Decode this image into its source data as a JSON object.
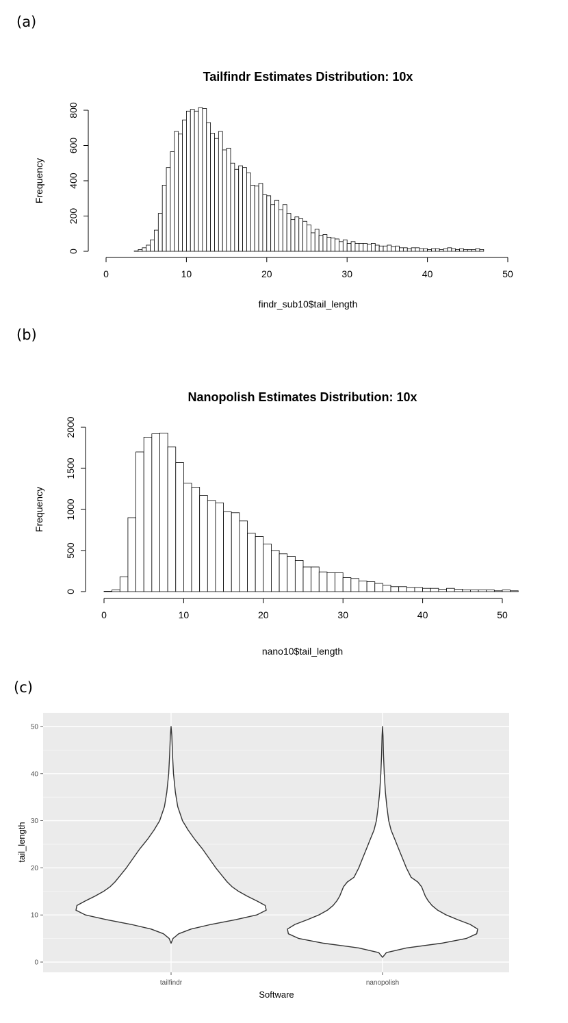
{
  "panel_labels": [
    "(a)",
    "(b)",
    "(c)"
  ],
  "chart_data": [
    {
      "type": "bar",
      "subtype": "histogram",
      "title": "Tailfindr Estimates Distribution: 10x",
      "xlabel": "findr_sub10$tail_length",
      "ylabel": "Frequency",
      "bin_width": 0.5,
      "bin_start": 3.5,
      "xlim": [
        0,
        52
      ],
      "ylim": [
        0,
        810
      ],
      "x_ticks": [
        0,
        10,
        20,
        30,
        40,
        50
      ],
      "y_ticks": [
        0,
        200,
        400,
        600,
        800
      ],
      "values": [
        2,
        10,
        20,
        35,
        65,
        120,
        215,
        375,
        475,
        565,
        680,
        665,
        745,
        795,
        805,
        795,
        815,
        810,
        730,
        670,
        640,
        680,
        575,
        585,
        500,
        465,
        485,
        475,
        445,
        375,
        370,
        385,
        320,
        315,
        265,
        290,
        235,
        265,
        215,
        180,
        195,
        185,
        170,
        150,
        105,
        125,
        90,
        95,
        80,
        75,
        70,
        55,
        65,
        45,
        55,
        45,
        45,
        45,
        40,
        45,
        35,
        30,
        30,
        35,
        25,
        30,
        20,
        20,
        15,
        20,
        20,
        15,
        15,
        10,
        15,
        15,
        10,
        15,
        20,
        15,
        10,
        15,
        10,
        10,
        10,
        15,
        10
      ]
    },
    {
      "type": "bar",
      "subtype": "histogram",
      "title": "Nanopolish Estimates Distribution: 10x",
      "xlabel": "nano10$tail_length",
      "ylabel": "Frequency",
      "bin_width": 1,
      "bin_start": 0,
      "xlim": [
        0,
        52
      ],
      "ylim": [
        0,
        2000
      ],
      "x_ticks": [
        0,
        10,
        20,
        30,
        40,
        50
      ],
      "y_ticks": [
        0,
        500,
        1000,
        1500,
        2000
      ],
      "values": [
        5,
        20,
        180,
        900,
        1700,
        1880,
        1920,
        1930,
        1760,
        1570,
        1320,
        1270,
        1170,
        1110,
        1080,
        970,
        960,
        860,
        710,
        670,
        580,
        500,
        460,
        430,
        380,
        300,
        300,
        240,
        230,
        230,
        170,
        160,
        130,
        120,
        100,
        80,
        60,
        60,
        50,
        50,
        40,
        40,
        30,
        40,
        30,
        20,
        20,
        20,
        20,
        10,
        20,
        10
      ]
    },
    {
      "type": "violin",
      "xlabel": "Software",
      "ylabel": "tail_length",
      "categories": [
        "tailfindr",
        "nanopolish"
      ],
      "ylim": [
        0,
        50
      ],
      "y_ticks": [
        0,
        10,
        20,
        30,
        40,
        50
      ],
      "series": [
        {
          "name": "tailfindr",
          "y_min": 4,
          "y_max": 50,
          "y": [
            4,
            5,
            6,
            7,
            8,
            9,
            10,
            11,
            12,
            13,
            14,
            15,
            16,
            17,
            18,
            20,
            22,
            24,
            26,
            28,
            30,
            33,
            36,
            40,
            44,
            48,
            50
          ],
          "half_width": [
            0.0,
            0.02,
            0.08,
            0.21,
            0.42,
            0.68,
            0.9,
            1.0,
            0.99,
            0.9,
            0.8,
            0.71,
            0.64,
            0.59,
            0.55,
            0.47,
            0.4,
            0.33,
            0.25,
            0.18,
            0.12,
            0.07,
            0.045,
            0.025,
            0.015,
            0.008,
            0.0
          ]
        },
        {
          "name": "nanopolish",
          "y_min": 1,
          "y_max": 50,
          "y": [
            1,
            2,
            3,
            4,
            5,
            6,
            7,
            8,
            9,
            10,
            11,
            12,
            13,
            14,
            16,
            17,
            18,
            20,
            22,
            24,
            26,
            28,
            30,
            33,
            36,
            40,
            44,
            48,
            50
          ],
          "half_width": [
            0.0,
            0.04,
            0.25,
            0.62,
            0.88,
            0.99,
            1.0,
            0.92,
            0.79,
            0.67,
            0.58,
            0.52,
            0.48,
            0.45,
            0.41,
            0.37,
            0.3,
            0.25,
            0.21,
            0.17,
            0.13,
            0.09,
            0.065,
            0.045,
            0.03,
            0.018,
            0.01,
            0.005,
            0.0
          ]
        }
      ]
    }
  ]
}
